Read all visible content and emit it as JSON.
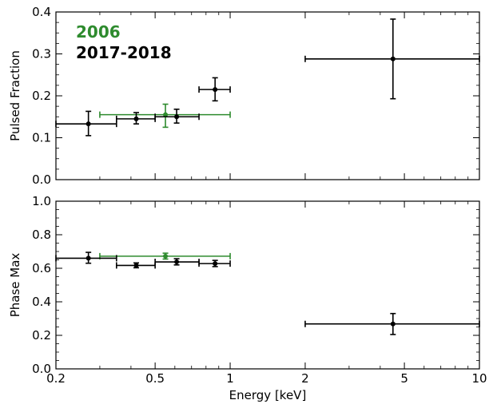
{
  "chart_data": [
    {
      "type": "scatter",
      "panel": "top",
      "xscale": "log",
      "xlim": [
        0.2,
        10
      ],
      "ylim": [
        0.0,
        0.4
      ],
      "xlabel": "Energy [keV]",
      "ylabel": "Pulsed Fraction",
      "x_ticks": [
        0.2,
        0.5,
        1,
        2,
        5,
        10
      ],
      "x_tick_labels": [
        "0.2",
        "0.5",
        "1",
        "2",
        "5",
        "10"
      ],
      "y_ticks": [
        0.0,
        0.1,
        0.2,
        0.3,
        0.4
      ],
      "y_tick_labels": [
        "0.0",
        "0.1",
        "0.2",
        "0.3",
        "0.4"
      ],
      "legend": {
        "placement": "top-left",
        "entries": [
          "2006",
          "2017-2018"
        ]
      },
      "series": [
        {
          "name": "2006",
          "color": "#2e8b2e",
          "points": [
            {
              "x": 0.55,
              "y": 0.155,
              "xlo": 0.3,
              "xhi": 1.0,
              "ylo": 0.125,
              "yhi": 0.18
            }
          ]
        },
        {
          "name": "2017-2018",
          "color": "#000000",
          "points": [
            {
              "x": 0.27,
              "y": 0.133,
              "xlo": 0.2,
              "xhi": 0.35,
              "ylo": 0.105,
              "yhi": 0.163
            },
            {
              "x": 0.42,
              "y": 0.145,
              "xlo": 0.35,
              "xhi": 0.5,
              "ylo": 0.133,
              "yhi": 0.16
            },
            {
              "x": 0.61,
              "y": 0.15,
              "xlo": 0.5,
              "xhi": 0.75,
              "ylo": 0.135,
              "yhi": 0.168
            },
            {
              "x": 0.87,
              "y": 0.215,
              "xlo": 0.75,
              "xhi": 1.0,
              "ylo": 0.188,
              "yhi": 0.243
            },
            {
              "x": 4.5,
              "y": 0.288,
              "xlo": 2.0,
              "xhi": 10.0,
              "ylo": 0.193,
              "yhi": 0.383
            }
          ]
        }
      ]
    },
    {
      "type": "scatter",
      "panel": "bottom",
      "xscale": "log",
      "xlim": [
        0.2,
        10
      ],
      "ylim": [
        0.0,
        1.0
      ],
      "xlabel": "Energy [keV]",
      "ylabel": "Phase Max",
      "x_ticks": [
        0.2,
        0.5,
        1,
        2,
        5,
        10
      ],
      "x_tick_labels": [
        "0.2",
        "0.5",
        "1",
        "2",
        "5",
        "10"
      ],
      "y_ticks": [
        0.0,
        0.2,
        0.4,
        0.6,
        0.8,
        1.0
      ],
      "y_tick_labels": [
        "0.0",
        "0.2",
        "0.4",
        "0.6",
        "0.8",
        "1.0"
      ],
      "series": [
        {
          "name": "2006",
          "color": "#2e8b2e",
          "points": [
            {
              "x": 0.55,
              "y": 0.672,
              "xlo": 0.3,
              "xhi": 1.0,
              "ylo": 0.655,
              "yhi": 0.69
            }
          ]
        },
        {
          "name": "2017-2018",
          "color": "#000000",
          "points": [
            {
              "x": 0.27,
              "y": 0.66,
              "xlo": 0.2,
              "xhi": 0.35,
              "ylo": 0.63,
              "yhi": 0.695
            },
            {
              "x": 0.42,
              "y": 0.617,
              "xlo": 0.35,
              "xhi": 0.5,
              "ylo": 0.603,
              "yhi": 0.632
            },
            {
              "x": 0.61,
              "y": 0.638,
              "xlo": 0.5,
              "xhi": 0.75,
              "ylo": 0.62,
              "yhi": 0.657
            },
            {
              "x": 0.87,
              "y": 0.628,
              "xlo": 0.75,
              "xhi": 1.0,
              "ylo": 0.61,
              "yhi": 0.647
            },
            {
              "x": 4.5,
              "y": 0.268,
              "xlo": 2.0,
              "xhi": 10.0,
              "ylo": 0.205,
              "yhi": 0.33
            }
          ]
        }
      ]
    }
  ]
}
